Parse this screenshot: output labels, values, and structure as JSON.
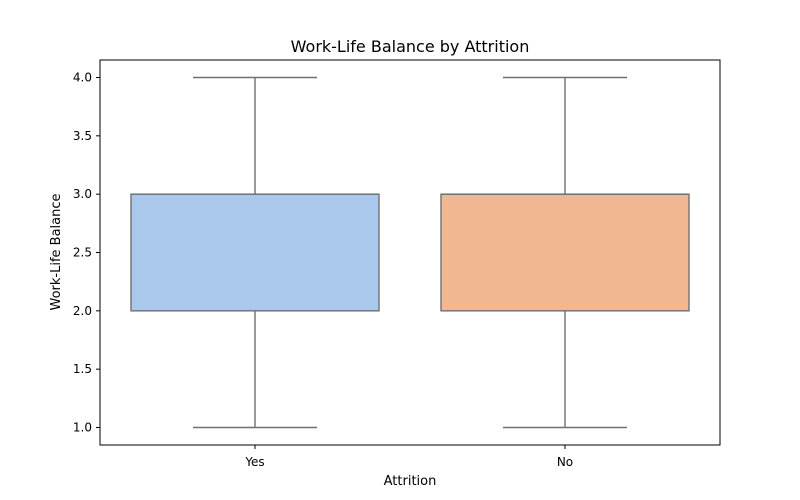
{
  "chart_data": {
    "type": "box",
    "title": "Work-Life Balance by Attrition",
    "xlabel": "Attrition",
    "ylabel": "Work-Life Balance",
    "categories": [
      "Yes",
      "No"
    ],
    "boxes": [
      {
        "category": "Yes",
        "whisker_low": 1.0,
        "q1": 2.0,
        "median": 3.0,
        "q3": 3.0,
        "whisker_high": 4.0,
        "color": "#a9c8ec"
      },
      {
        "category": "No",
        "whisker_low": 1.0,
        "q1": 2.0,
        "median": 3.0,
        "q3": 3.0,
        "whisker_high": 4.0,
        "color": "#f0b790"
      }
    ],
    "ylim": [
      0.85,
      4.15
    ],
    "yticks": [
      "1.0",
      "1.5",
      "2.0",
      "2.5",
      "3.0",
      "3.5",
      "4.0"
    ],
    "grid": false,
    "legend": "none",
    "line_color": "#707070"
  }
}
